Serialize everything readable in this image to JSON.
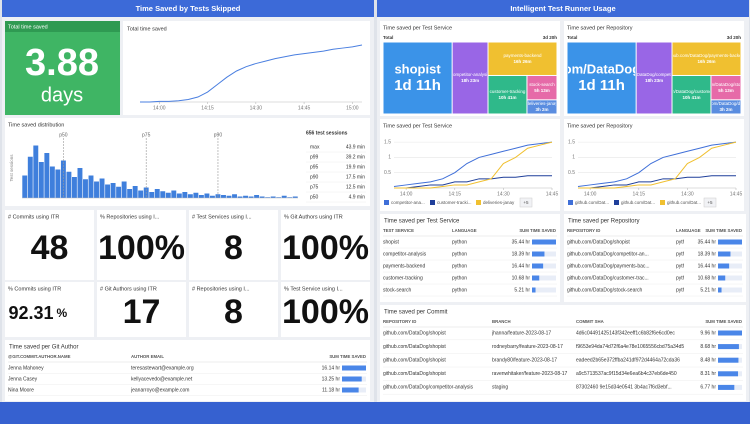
{
  "left": {
    "header": "Time Saved by Tests Skipped",
    "tile": {
      "title": "Total time saved",
      "value": "3.88",
      "unit": "days"
    },
    "total": {
      "type": "line",
      "title": "Total time saved",
      "color": "#4a7fe0",
      "values": [
        0,
        0,
        1,
        1,
        2,
        4,
        8,
        16,
        28,
        40,
        50,
        57,
        62,
        66,
        70,
        73,
        76,
        78,
        80,
        82,
        85,
        87,
        89,
        92
      ],
      "ylim": [
        0,
        100
      ],
      "xticks": [
        {
          "value": 2,
          "label": "14:00"
        },
        {
          "value": 7,
          "label": "14:15"
        },
        {
          "value": 12,
          "label": "14:30"
        },
        {
          "value": 17,
          "label": "14:45"
        },
        {
          "value": 22,
          "label": "15:00"
        }
      ]
    },
    "dist": {
      "type": "bar",
      "title": "Time saved distribution",
      "y_label": "Test sessions",
      "color": "#3f7fdc",
      "values": [
        30,
        55,
        70,
        48,
        60,
        42,
        38,
        50,
        35,
        28,
        40,
        25,
        30,
        22,
        26,
        18,
        20,
        15,
        22,
        12,
        16,
        10,
        14,
        8,
        12,
        9,
        7,
        10,
        6,
        8,
        5,
        7,
        4,
        6,
        3,
        5,
        4,
        3,
        5,
        2,
        3,
        2,
        4,
        2,
        1,
        2,
        1,
        3,
        1,
        2
      ],
      "ylim": [
        0,
        80
      ],
      "markers": [
        {
          "label": "p50",
          "value": 7
        },
        {
          "label": "p75",
          "value": 22
        },
        {
          "label": "p90",
          "value": 35
        }
      ],
      "sessions": "656 test sessions",
      "stats": [
        {
          "label": "max",
          "value": "43.9 min"
        },
        {
          "label": "p99",
          "value": "39.2 min"
        },
        {
          "label": "p95",
          "value": "19.9 min"
        },
        {
          "label": "p90",
          "value": "17.5 min"
        },
        {
          "label": "p75",
          "value": "12.5 min"
        },
        {
          "label": "p50",
          "value": "4.9 min"
        }
      ]
    },
    "kpis": [
      {
        "title": "# Commits using ITR",
        "value": "48"
      },
      {
        "title": "% Repositories using I...",
        "value": "100%"
      },
      {
        "title": "# Test Services using I...",
        "value": "8"
      },
      {
        "title": "% Git Authors using ITR",
        "value": "100%"
      },
      {
        "title": "% Commits using ITR",
        "value": "92.31",
        "unit": "%"
      },
      {
        "title": "# Git Authors using ITR",
        "value": "17"
      },
      {
        "title": "# Repositories using I...",
        "value": "8"
      },
      {
        "title": "% Test Service using I...",
        "value": "100%"
      }
    ],
    "authors": {
      "title": "Time saved per Git Author",
      "columns": [
        "@GIT.COMMIT.AUTHOR.NAME",
        "AUTHOR EMAIL",
        "SUM TIME SAVED"
      ],
      "rows": [
        [
          "Jenna Mahoney",
          "teresastewart@example.org",
          "16.14 hr"
        ],
        [
          "Jenna Casey",
          "kellyacevedo@example.net",
          "13.25 hr"
        ],
        [
          "Nina Moore",
          "jeanarroyo@example.com",
          "11.18 hr"
        ]
      ],
      "bar_values": [
        16.14,
        13.25,
        11.18
      ]
    }
  },
  "right": {
    "header": "Intelligent Test Runner Usage",
    "treemaps": [
      {
        "type": "treemap",
        "title": "Time saved per Test Service",
        "total_label": "Total",
        "total": "3d 20h",
        "tiles": [
          {
            "label": "shopist",
            "value_label": "1d 11h",
            "value": 35.44,
            "color": "#3b93e8"
          },
          {
            "label": "competitor-analysis",
            "value_label": "18h 23m",
            "value": 18.39,
            "color": "#9966e6"
          },
          {
            "label": "payments-backend",
            "value_label": "16h 26m",
            "value": 16.44,
            "color": "#f0c030"
          },
          {
            "label": "customer-tracking",
            "value_label": "10h 41m",
            "value": 10.68,
            "color": "#2fb98a"
          },
          {
            "label": "stock-search",
            "value_label": "5h 13m",
            "value": 5.21,
            "color": "#e66aa8"
          },
          {
            "label": "deliveries-janay",
            "value_label": "3h 2m",
            "value": 3.03,
            "color": "#5a8de0"
          }
        ]
      },
      {
        "type": "treemap",
        "title": "Time saved per Repository",
        "total_label": "Total",
        "total": "3d 20h",
        "tiles": [
          {
            "label": "github.com/DataDog/shopist",
            "value_label": "1d 11h",
            "value": 35.44,
            "color": "#3b93e8"
          },
          {
            "label": "github.com/DataDog/competitor-analysis",
            "value_label": "18h 23m",
            "value": 18.39,
            "color": "#9966e6"
          },
          {
            "label": "github.com/DataDog/payments-backend",
            "value_label": "16h 26m",
            "value": 16.44,
            "color": "#f0c030"
          },
          {
            "label": "github.com/DataDog/customer-tracking",
            "value_label": "10h 41m",
            "value": 10.68,
            "color": "#2fb98a"
          },
          {
            "label": "github.com/DataDog/stock-search",
            "value_label": "5h 13m",
            "value": 5.21,
            "color": "#e66aa8"
          },
          {
            "label": "github.com/DataDog/deliveries",
            "value_label": "3h 2m",
            "value": 3.03,
            "color": "#5a8de0"
          }
        ]
      }
    ],
    "lines": [
      {
        "type": "line",
        "title": "Time saved per Test Service",
        "ylim": [
          0,
          1.7
        ],
        "yticks": [
          0.5,
          1,
          1.5
        ],
        "xticks": [
          {
            "value": 1,
            "label": "14:00"
          },
          {
            "value": 5,
            "label": "14:15"
          },
          {
            "value": 9,
            "label": "14:30"
          },
          {
            "value": 13,
            "label": "14:45"
          }
        ],
        "series": [
          {
            "name": "competitor-ana...",
            "color": "#3f6fd8",
            "values": [
              0.05,
              0.1,
              0.15,
              0.2,
              0.3,
              0.5,
              0.8,
              1.0,
              1.1,
              1.2,
              1.3,
              1.4,
              1.45,
              1.5
            ]
          },
          {
            "name": "customer-tracki...",
            "color": "#1f3f9a",
            "values": [
              0,
              0,
              0.05,
              0.1,
              0.1,
              0.2,
              0.2,
              0.3,
              0.3,
              0.35,
              0.35,
              0.4,
              0.4,
              0.4
            ]
          },
          {
            "name": "deliveries-janay",
            "color": "#f0c030",
            "values": [
              0,
              0,
              0,
              0,
              0.05,
              0.1,
              0.1,
              0.2,
              0.3,
              0.8,
              1.0,
              1.3,
              1.4,
              1.5
            ]
          }
        ],
        "more": "+5"
      },
      {
        "type": "line",
        "title": "Time saved per Repository",
        "ylim": [
          0,
          1.7
        ],
        "yticks": [
          0.5,
          1,
          1.5
        ],
        "xticks": [
          {
            "value": 1,
            "label": "14:00"
          },
          {
            "value": 5,
            "label": "14:15"
          },
          {
            "value": 9,
            "label": "14:30"
          },
          {
            "value": 13,
            "label": "14:45"
          }
        ],
        "series": [
          {
            "name": "github.com/Dat...",
            "color": "#3f6fd8",
            "values": [
              0.05,
              0.1,
              0.15,
              0.2,
              0.3,
              0.5,
              0.8,
              1.0,
              1.1,
              1.2,
              1.3,
              1.4,
              1.45,
              1.5
            ]
          },
          {
            "name": "github.com/Dat...",
            "color": "#1f3f9a",
            "values": [
              0,
              0,
              0.05,
              0.1,
              0.1,
              0.2,
              0.2,
              0.3,
              0.3,
              0.35,
              0.35,
              0.4,
              0.4,
              0.4
            ]
          },
          {
            "name": "github.com/Dat...",
            "color": "#f0c030",
            "values": [
              0,
              0,
              0,
              0,
              0.05,
              0.1,
              0.1,
              0.2,
              0.3,
              0.8,
              1.0,
              1.3,
              1.4,
              1.5
            ]
          }
        ],
        "more": "+5"
      }
    ],
    "tables": [
      {
        "title": "Time saved per Test Service",
        "columns": [
          "TEST SERVICE",
          "LANGUAGE",
          "SUM TIME SAVED"
        ],
        "rows": [
          [
            "shopist",
            "python",
            "35.44 hr"
          ],
          [
            "competitor-analysis",
            "python",
            "18.39 hr"
          ],
          [
            "payments-backend",
            "python",
            "16.44 hr"
          ],
          [
            "customer-tracking",
            "python",
            "10.68 hr"
          ],
          [
            "stock-search",
            "python",
            "5.21 hr"
          ]
        ],
        "bar_values": [
          35.44,
          18.39,
          16.44,
          10.68,
          5.21
        ]
      },
      {
        "title": "Time saved per Repository",
        "columns": [
          "REPOSITORY ID",
          "LANGUAGE",
          "SUM TIME SAVED"
        ],
        "rows": [
          [
            "github.com/DataDog/shopist",
            "python",
            "35.44 hr"
          ],
          [
            "github.com/DataDog/competitor-an...",
            "python",
            "18.39 hr"
          ],
          [
            "github.com/DataDog/payments-bac...",
            "python",
            "16.44 hr"
          ],
          [
            "github.com/DataDog/customer-trac...",
            "python",
            "10.68 hr"
          ],
          [
            "github.com/DataDog/stock-search",
            "python",
            "5.21 hr"
          ]
        ],
        "bar_values": [
          35.44,
          18.39,
          16.44,
          10.68,
          5.21
        ]
      },
      {
        "title": "Time saved per Commit",
        "columns": [
          "REPOSITORY ID",
          "BRANCH",
          "COMMIT SHA",
          "SUM TIME SAVED"
        ],
        "rows": [
          [
            "github.com/DataDog/shopist",
            "jhanna/feature-2023-08-17",
            "4d6c04491425143f342eeff1c6b82f6e6cd0ec",
            "9.96 hr"
          ],
          [
            "github.com/DataDog/shopist",
            "rodneybarry/feature-2023-08-17",
            "f9653e94da74d72f6a4e78e1065556cbd75a34d5",
            "8.68 hr"
          ],
          [
            "github.com/DataDog/shopist",
            "brandy80/feature-2023-08-17",
            "eadeed2b65e372ffba241df972d4464a72cda36",
            "8.48 hr"
          ],
          [
            "github.com/DataDog/shopist",
            "ravenwhitaker/feature-2023-08-17",
            "a9c5713537ac9f15d34e6ea6b4c37eb6de450",
            "8.31 hr"
          ],
          [
            "github.com/DataDog/competitor-analysis",
            "staging",
            "87302460 9e15d34e0541 3b4ac7f6d3ebf...",
            "6.77 hr"
          ]
        ],
        "bar_values": [
          9.96,
          8.68,
          8.48,
          8.31,
          6.77
        ]
      }
    ]
  }
}
